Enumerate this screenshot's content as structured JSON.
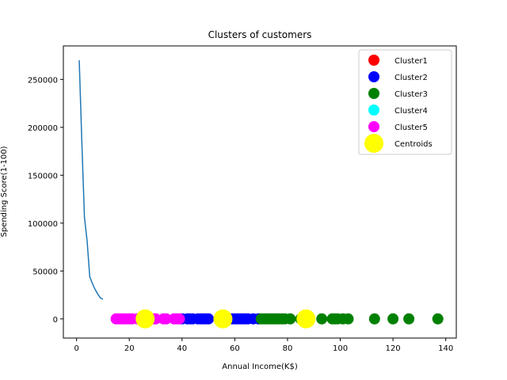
{
  "chart_data": {
    "type": "scatter",
    "title": "Clusters of customers",
    "xlabel": "Annual Income(K$)",
    "ylabel": "Spending Score(1-100)",
    "xlim": [
      -5,
      144
    ],
    "ylim": [
      -20000,
      285000
    ],
    "x_ticks": [
      0,
      20,
      40,
      60,
      80,
      100,
      120,
      140
    ],
    "y_ticks": [
      0,
      50000,
      100000,
      150000,
      200000,
      250000
    ],
    "grid": false,
    "legend_position": "top-right",
    "line_series": {
      "color": "#1f77b4",
      "points": [
        [
          1,
          270000
        ],
        [
          2,
          185000
        ],
        [
          3,
          106000
        ],
        [
          4,
          81000
        ],
        [
          5,
          44000
        ],
        [
          6,
          37000
        ],
        [
          7,
          31000
        ],
        [
          8,
          26000
        ],
        [
          9,
          22000
        ],
        [
          10,
          20500
        ]
      ]
    },
    "series": [
      {
        "name": "Cluster1",
        "color": "#ff0000",
        "points": []
      },
      {
        "name": "Cluster2",
        "color": "#0000ff",
        "points": [
          [
            40,
            0
          ],
          [
            42,
            0
          ],
          [
            43,
            0
          ],
          [
            44,
            0
          ],
          [
            46,
            0
          ],
          [
            47,
            0
          ],
          [
            48,
            0
          ],
          [
            49,
            0
          ],
          [
            50,
            0
          ],
          [
            54,
            0
          ],
          [
            57,
            0
          ],
          [
            58,
            0
          ],
          [
            59,
            0
          ],
          [
            60,
            0
          ],
          [
            61,
            0
          ],
          [
            62,
            0
          ],
          [
            63,
            0
          ],
          [
            64,
            0
          ],
          [
            65,
            0
          ],
          [
            67,
            0
          ],
          [
            69,
            0
          ]
        ]
      },
      {
        "name": "Cluster3",
        "color": "#008000",
        "points": [
          [
            70,
            0
          ],
          [
            71,
            0
          ],
          [
            72,
            0
          ],
          [
            73,
            0
          ],
          [
            74,
            0
          ],
          [
            75,
            0
          ],
          [
            76,
            0
          ],
          [
            77,
            0
          ],
          [
            78,
            0
          ],
          [
            79,
            0
          ],
          [
            81,
            0
          ],
          [
            85,
            0
          ],
          [
            86,
            0
          ],
          [
            87,
            0
          ],
          [
            88,
            0
          ],
          [
            93,
            0
          ],
          [
            97,
            0
          ],
          [
            98,
            0
          ],
          [
            99,
            0
          ],
          [
            101,
            0
          ],
          [
            103,
            0
          ],
          [
            113,
            0
          ],
          [
            120,
            0
          ],
          [
            126,
            0
          ],
          [
            137,
            0
          ]
        ]
      },
      {
        "name": "Cluster4",
        "color": "#00ffff",
        "points": []
      },
      {
        "name": "Cluster5",
        "color": "#ff00ff",
        "points": [
          [
            15,
            0
          ],
          [
            16,
            0
          ],
          [
            17,
            0
          ],
          [
            18,
            0
          ],
          [
            19,
            0
          ],
          [
            20,
            0
          ],
          [
            21,
            0
          ],
          [
            23,
            0
          ],
          [
            24,
            0
          ],
          [
            25,
            0
          ],
          [
            28,
            0
          ],
          [
            29,
            0
          ],
          [
            30,
            0
          ],
          [
            33,
            0
          ],
          [
            34,
            0
          ],
          [
            37,
            0
          ],
          [
            38,
            0
          ],
          [
            39,
            0
          ]
        ]
      },
      {
        "name": "Centroids",
        "color": "#ffff00",
        "points": [
          [
            26,
            0
          ],
          [
            55.5,
            0
          ],
          [
            87,
            0
          ]
        ],
        "large": true
      }
    ]
  }
}
